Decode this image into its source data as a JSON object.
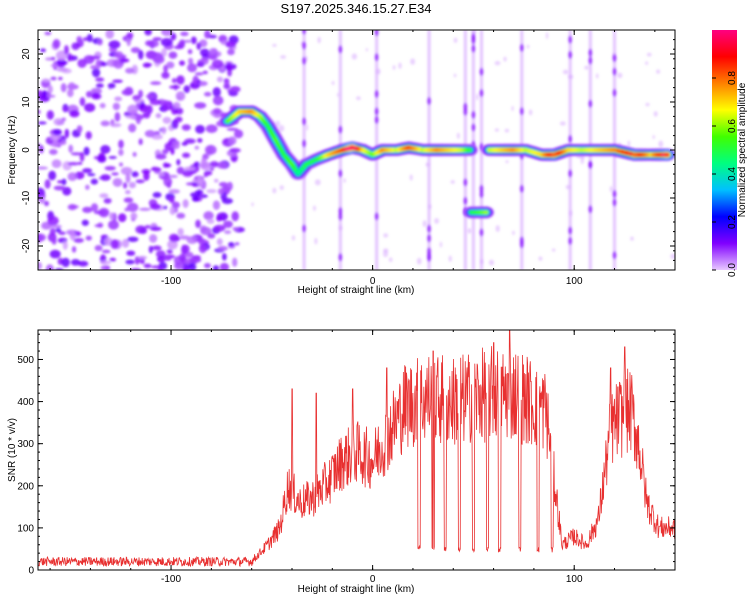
{
  "title": "S197.2025.346.15.27.E34",
  "chart_data": [
    {
      "type": "heatmap",
      "xlabel": "Height of straight line (km)",
      "ylabel": "Frequency (Hz)",
      "xlim": [
        -166,
        150
      ],
      "ylim": [
        -25,
        25
      ],
      "xticks": [
        -100,
        0,
        100
      ],
      "yticks": [
        -20,
        -10,
        0,
        10,
        20
      ],
      "colorbar": {
        "label": "Normalized spectral amplitude",
        "range": [
          0,
          1
        ],
        "ticks": [
          "0.0",
          "0.2",
          "0.4",
          "0.6",
          "0.8"
        ],
        "colors": [
          "#e8c8ff",
          "#8000ff",
          "#0000ff",
          "#00c0ff",
          "#00ff80",
          "#40ff00",
          "#ffff00",
          "#ff8000",
          "#ff0000",
          "#ff0080"
        ]
      },
      "noise_region_x": [
        -166,
        -66
      ],
      "ridge": [
        {
          "x": -72,
          "y": 6,
          "a": 0.4
        },
        {
          "x": -66,
          "y": 8,
          "a": 0.5
        },
        {
          "x": -60,
          "y": 8,
          "a": 0.55
        },
        {
          "x": -56,
          "y": 7,
          "a": 0.45
        },
        {
          "x": -52,
          "y": 5,
          "a": 0.35
        },
        {
          "x": -48,
          "y": 2,
          "a": 0.4
        },
        {
          "x": -44,
          "y": -1,
          "a": 0.35
        },
        {
          "x": -40,
          "y": -3,
          "a": 0.4
        },
        {
          "x": -37,
          "y": -5,
          "a": 0.3
        },
        {
          "x": -33,
          "y": -3,
          "a": 0.35
        },
        {
          "x": -28,
          "y": -2,
          "a": 0.35
        },
        {
          "x": -22,
          "y": -1,
          "a": 0.5
        },
        {
          "x": -15,
          "y": 0,
          "a": 0.6
        },
        {
          "x": -10,
          "y": 0.5,
          "a": 0.85
        },
        {
          "x": -5,
          "y": 0,
          "a": 0.5
        },
        {
          "x": 0,
          "y": -1,
          "a": 0.4
        },
        {
          "x": 5,
          "y": 0,
          "a": 0.55
        },
        {
          "x": 12,
          "y": 0,
          "a": 0.45
        },
        {
          "x": 18,
          "y": 0.5,
          "a": 0.6
        },
        {
          "x": 25,
          "y": 0,
          "a": 0.45
        },
        {
          "x": 32,
          "y": 0,
          "a": 0.55
        },
        {
          "x": 38,
          "y": 0,
          "a": 0.5
        },
        {
          "x": 45,
          "y": 0,
          "a": 0.45
        },
        {
          "x": 49,
          "y": -13,
          "a": 0.35
        },
        {
          "x": 58,
          "y": 0,
          "a": 0.45
        },
        {
          "x": 64,
          "y": 0,
          "a": 0.5
        },
        {
          "x": 70,
          "y": 0,
          "a": 0.55
        },
        {
          "x": 76,
          "y": 0,
          "a": 0.45
        },
        {
          "x": 84,
          "y": -1,
          "a": 0.5
        },
        {
          "x": 90,
          "y": -1,
          "a": 0.7
        },
        {
          "x": 97,
          "y": 0,
          "a": 0.5
        },
        {
          "x": 104,
          "y": 0,
          "a": 0.45
        },
        {
          "x": 112,
          "y": 0,
          "a": 0.5
        },
        {
          "x": 120,
          "y": 0,
          "a": 0.55
        },
        {
          "x": 130,
          "y": -1,
          "a": 0.7
        },
        {
          "x": 138,
          "y": -1,
          "a": 0.5
        },
        {
          "x": 146,
          "y": -1,
          "a": 0.75
        }
      ],
      "vertical_streaks_x": [
        -34,
        -16,
        2,
        28,
        46,
        50,
        54,
        74,
        98,
        108,
        120
      ]
    },
    {
      "type": "line",
      "xlabel": "Height of straight line (km)",
      "ylabel": "SNR (10 * v/v)",
      "xlim": [
        -166,
        150
      ],
      "ylim": [
        0,
        570
      ],
      "xticks": [
        -100,
        0,
        100
      ],
      "yticks": [
        0,
        100,
        200,
        300,
        400,
        500
      ],
      "color": "#e83030",
      "profile": [
        [
          -166,
          20
        ],
        [
          -60,
          20
        ],
        [
          -52,
          60
        ],
        [
          -46,
          100
        ],
        [
          -42,
          200
        ],
        [
          -36,
          160
        ],
        [
          -30,
          170
        ],
        [
          -22,
          210
        ],
        [
          -15,
          260
        ],
        [
          -8,
          280
        ],
        [
          0,
          260
        ],
        [
          5,
          300
        ],
        [
          10,
          340
        ],
        [
          16,
          390
        ],
        [
          22,
          400
        ],
        [
          28,
          410
        ],
        [
          40,
          400
        ],
        [
          50,
          410
        ],
        [
          60,
          420
        ],
        [
          70,
          420
        ],
        [
          78,
          400
        ],
        [
          86,
          380
        ],
        [
          90,
          220
        ],
        [
          94,
          60
        ],
        [
          100,
          80
        ],
        [
          106,
          60
        ],
        [
          112,
          120
        ],
        [
          118,
          330
        ],
        [
          122,
          360
        ],
        [
          128,
          380
        ],
        [
          132,
          300
        ],
        [
          136,
          160
        ],
        [
          142,
          100
        ],
        [
          150,
          100
        ]
      ],
      "dropouts": [
        {
          "x": 23,
          "y": 50
        },
        {
          "x": 30,
          "y": 40
        },
        {
          "x": 36,
          "y": 40
        },
        {
          "x": 43,
          "y": 40
        },
        {
          "x": 50,
          "y": 40
        },
        {
          "x": 57,
          "y": 40
        },
        {
          "x": 63,
          "y": 40
        },
        {
          "x": 73,
          "y": 40
        },
        {
          "x": 82,
          "y": 40
        },
        {
          "x": 89,
          "y": 40
        }
      ],
      "spikes": [
        {
          "x": -40,
          "y": 430
        },
        {
          "x": -28,
          "y": 420
        },
        {
          "x": -10,
          "y": 430
        },
        {
          "x": 7,
          "y": 480
        },
        {
          "x": 30,
          "y": 520
        },
        {
          "x": 60,
          "y": 540
        },
        {
          "x": 68,
          "y": 570
        },
        {
          "x": 125,
          "y": 530
        },
        {
          "x": 118,
          "y": 480
        }
      ]
    }
  ]
}
